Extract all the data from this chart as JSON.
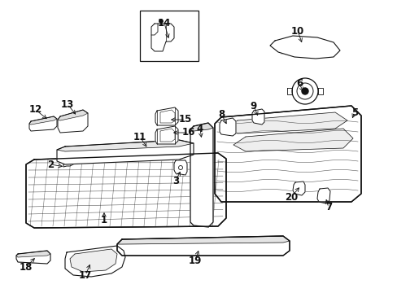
{
  "bg_color": "#ffffff",
  "line_color": "#111111",
  "label_color": "#111111",
  "label_fontsize": 8.5,
  "lw": 0.7,
  "labels": {
    "1": [
      128,
      258,
      128,
      270
    ],
    "2": [
      80,
      205,
      62,
      202
    ],
    "3": [
      223,
      208,
      216,
      222
    ],
    "4": [
      248,
      172,
      246,
      158
    ],
    "5": [
      432,
      148,
      436,
      138
    ],
    "6": [
      374,
      115,
      368,
      103
    ],
    "7": [
      400,
      242,
      404,
      255
    ],
    "8": [
      280,
      155,
      272,
      140
    ],
    "9": [
      318,
      145,
      312,
      130
    ],
    "10": [
      372,
      55,
      366,
      38
    ],
    "11": [
      182,
      183,
      172,
      168
    ],
    "12": [
      60,
      148,
      44,
      135
    ],
    "13": [
      95,
      143,
      83,
      128
    ],
    "14": [
      208,
      50,
      202,
      28
    ],
    "15": [
      207,
      147,
      228,
      147
    ],
    "16": [
      210,
      163,
      232,
      163
    ],
    "17": [
      112,
      322,
      105,
      338
    ],
    "18": [
      45,
      315,
      32,
      328
    ],
    "19": [
      245,
      305,
      240,
      320
    ],
    "20": [
      370,
      228,
      358,
      242
    ]
  }
}
